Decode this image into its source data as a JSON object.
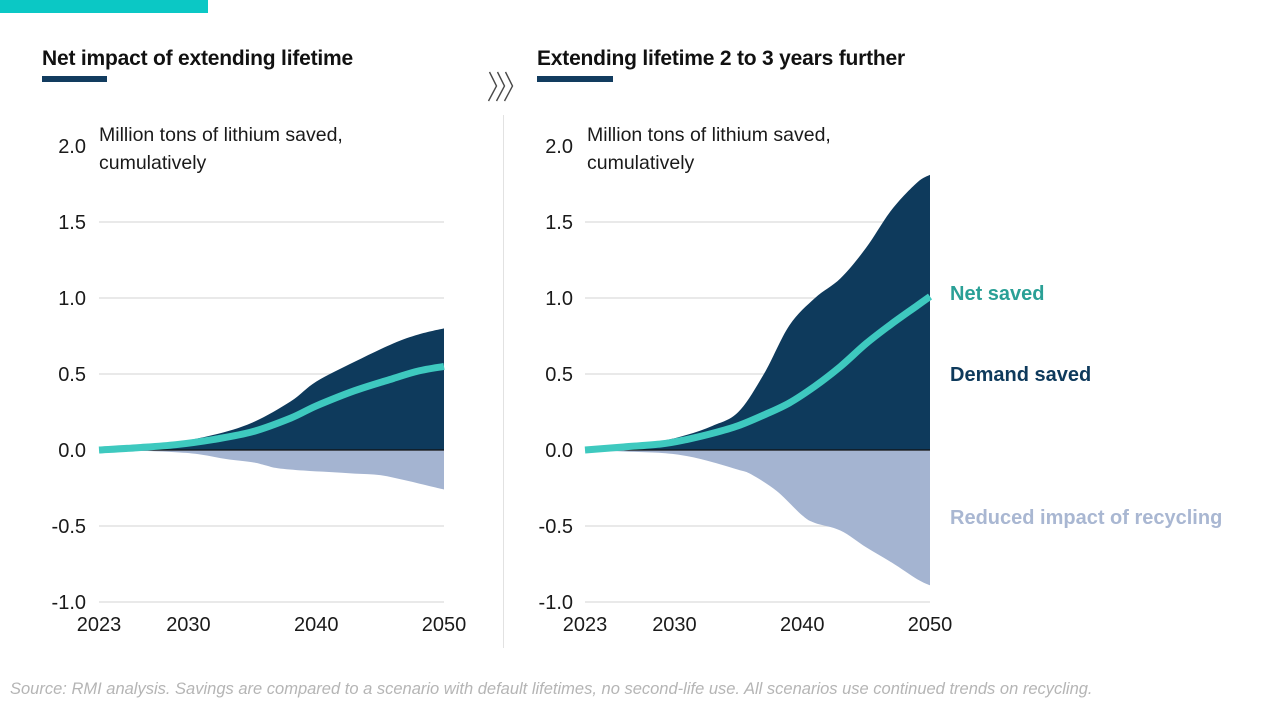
{
  "brand": {
    "accent_bar_color": "#0bc8c5"
  },
  "colors": {
    "navy": "#0e3a5c",
    "teal_line": "#3ec9bf",
    "teal_label": "#2aa096",
    "light_blue": "#a4b4d1",
    "light_blue_label": "#a9b7d2",
    "gridline": "#dcdcdc",
    "zero_line": "#111111",
    "axis_text": "#1a1a1a",
    "title_underline": "#123c5f",
    "chevron": "#4a4a4a",
    "source_text": "#b5b5b5"
  },
  "legend": {
    "net_saved": "Net saved",
    "demand_saved": "Demand saved",
    "reduced_impact": "Reduced impact of recycling"
  },
  "transition_icon": "triple-chevron-right",
  "source": "Source: RMI analysis. Savings are compared to a scenario with default lifetimes, no second-life use. All scenarios use continued trends on recycling.",
  "chart_data": [
    {
      "type": "area",
      "title": "Net impact of extending lifetime",
      "ylabel_lines": [
        "Million tons of lithium saved,",
        "cumulatively"
      ],
      "xlabel": "",
      "xlim": [
        2023,
        2050
      ],
      "ylim": [
        -1.0,
        2.0
      ],
      "grid": "horizontal",
      "legend_position": "right-of-second-panel",
      "y_ticks": [
        {
          "v": 2.0,
          "label": "2.0"
        },
        {
          "v": 1.5,
          "label": "1.5"
        },
        {
          "v": 1.0,
          "label": "1.0"
        },
        {
          "v": 0.5,
          "label": "0.5"
        },
        {
          "v": 0.0,
          "label": "0.0"
        },
        {
          "v": -0.5,
          "label": "-0.5"
        },
        {
          "v": -1.0,
          "label": "-1.0"
        }
      ],
      "x_ticks": [
        {
          "v": 2023,
          "label": "2023"
        },
        {
          "v": 2030,
          "label": "2030"
        },
        {
          "v": 2040,
          "label": "2040"
        },
        {
          "v": 2050,
          "label": "2050"
        }
      ],
      "series": [
        {
          "name": "Reduced impact of recycling",
          "kind": "area",
          "color_key": "light_blue",
          "points": [
            [
              2023,
              0.0
            ],
            [
              2026,
              -0.005
            ],
            [
              2029,
              -0.015
            ],
            [
              2031,
              -0.03
            ],
            [
              2033,
              -0.06
            ],
            [
              2035,
              -0.08
            ],
            [
              2036,
              -0.1
            ],
            [
              2037,
              -0.12
            ],
            [
              2039,
              -0.135
            ],
            [
              2041,
              -0.145
            ],
            [
              2043,
              -0.155
            ],
            [
              2045,
              -0.165
            ],
            [
              2047,
              -0.2
            ],
            [
              2049,
              -0.24
            ],
            [
              2050,
              -0.26
            ]
          ]
        },
        {
          "name": "Demand saved",
          "kind": "area",
          "color_key": "navy",
          "points": [
            [
              2023,
              0.005
            ],
            [
              2026,
              0.02
            ],
            [
              2029,
              0.05
            ],
            [
              2032,
              0.1
            ],
            [
              2035,
              0.18
            ],
            [
              2038,
              0.32
            ],
            [
              2040,
              0.45
            ],
            [
              2043,
              0.58
            ],
            [
              2046,
              0.7
            ],
            [
              2048,
              0.76
            ],
            [
              2050,
              0.8
            ]
          ]
        },
        {
          "name": "Net saved",
          "kind": "line",
          "color_key": "teal_line",
          "points": [
            [
              2023,
              0.0
            ],
            [
              2026,
              0.015
            ],
            [
              2029,
              0.035
            ],
            [
              2032,
              0.07
            ],
            [
              2035,
              0.12
            ],
            [
              2038,
              0.21
            ],
            [
              2040,
              0.29
            ],
            [
              2043,
              0.39
            ],
            [
              2046,
              0.47
            ],
            [
              2048,
              0.52
            ],
            [
              2050,
              0.55
            ]
          ]
        }
      ]
    },
    {
      "type": "area",
      "title": "Extending lifetime 2 to 3 years further",
      "ylabel_lines": [
        "Million tons of lithium saved,",
        "cumulatively"
      ],
      "xlabel": "",
      "xlim": [
        2023,
        2050
      ],
      "ylim": [
        -1.0,
        2.0
      ],
      "grid": "horizontal",
      "y_ticks": [
        {
          "v": 2.0,
          "label": "2.0"
        },
        {
          "v": 1.5,
          "label": "1.5"
        },
        {
          "v": 1.0,
          "label": "1.0"
        },
        {
          "v": 0.5,
          "label": "0.5"
        },
        {
          "v": 0.0,
          "label": "0.0"
        },
        {
          "v": -0.5,
          "label": "-0.5"
        },
        {
          "v": -1.0,
          "label": "-1.0"
        }
      ],
      "x_ticks": [
        {
          "v": 2023,
          "label": "2023"
        },
        {
          "v": 2030,
          "label": "2030"
        },
        {
          "v": 2040,
          "label": "2040"
        },
        {
          "v": 2050,
          "label": "2050"
        }
      ],
      "series": [
        {
          "name": "Reduced impact of recycling",
          "kind": "area",
          "color_key": "light_blue",
          "points": [
            [
              2023,
              0.0
            ],
            [
              2026,
              -0.01
            ],
            [
              2029,
              -0.02
            ],
            [
              2031,
              -0.04
            ],
            [
              2033,
              -0.08
            ],
            [
              2035,
              -0.13
            ],
            [
              2036,
              -0.16
            ],
            [
              2038,
              -0.27
            ],
            [
              2040,
              -0.43
            ],
            [
              2041,
              -0.48
            ],
            [
              2043,
              -0.53
            ],
            [
              2045,
              -0.64
            ],
            [
              2047,
              -0.74
            ],
            [
              2049,
              -0.85
            ],
            [
              2050,
              -0.89
            ]
          ]
        },
        {
          "name": "Demand saved",
          "kind": "area",
          "color_key": "navy",
          "points": [
            [
              2023,
              0.005
            ],
            [
              2026,
              0.03
            ],
            [
              2029,
              0.06
            ],
            [
              2031,
              0.1
            ],
            [
              2033,
              0.16
            ],
            [
              2035,
              0.25
            ],
            [
              2037,
              0.5
            ],
            [
              2039,
              0.82
            ],
            [
              2041,
              1.0
            ],
            [
              2043,
              1.13
            ],
            [
              2045,
              1.33
            ],
            [
              2047,
              1.58
            ],
            [
              2049,
              1.76
            ],
            [
              2050,
              1.81
            ]
          ]
        },
        {
          "name": "Net saved",
          "kind": "line",
          "color_key": "teal_line",
          "points": [
            [
              2023,
              0.0
            ],
            [
              2026,
              0.02
            ],
            [
              2029,
              0.04
            ],
            [
              2031,
              0.07
            ],
            [
              2033,
              0.11
            ],
            [
              2035,
              0.16
            ],
            [
              2037,
              0.23
            ],
            [
              2039,
              0.31
            ],
            [
              2041,
              0.42
            ],
            [
              2043,
              0.55
            ],
            [
              2045,
              0.7
            ],
            [
              2047,
              0.83
            ],
            [
              2049,
              0.95
            ],
            [
              2050,
              1.01
            ]
          ]
        }
      ]
    }
  ]
}
